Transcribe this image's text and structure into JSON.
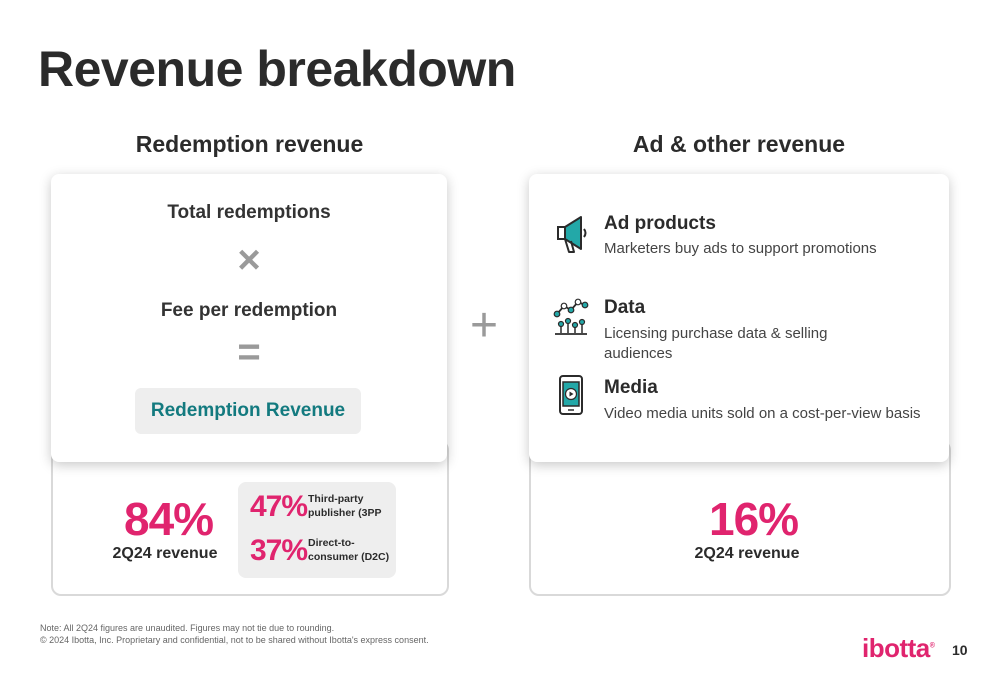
{
  "title": "Revenue breakdown",
  "redemption": {
    "heading": "Redemption revenue",
    "formula": {
      "line1": "Total redemptions",
      "times": "×",
      "line2": "Fee per redemption",
      "equals": "=",
      "result": "Redemption Revenue"
    },
    "share": {
      "pct": "84%",
      "label": "2Q24 revenue"
    },
    "split": [
      {
        "pct": "47%",
        "label": "Third-party publisher (3PP"
      },
      {
        "pct": "37%",
        "label": "Direct-to-consumer (D2C)"
      }
    ]
  },
  "plus": "+",
  "ad": {
    "heading": "Ad & other revenue",
    "items": [
      {
        "icon": "megaphone-icon",
        "title": "Ad products",
        "desc": "Marketers buy ads to support promotions"
      },
      {
        "icon": "data-chart-icon",
        "title": "Data",
        "desc": "Licensing purchase data & selling audiences"
      },
      {
        "icon": "video-phone-icon",
        "title": "Media",
        "desc": "Video media units sold on a cost-per-view basis"
      }
    ],
    "share": {
      "pct": "16%",
      "label": "2Q24 revenue"
    }
  },
  "footer": {
    "note1": "Note: All 2Q24 figures are unaudited. Figures may not tie due to rounding.",
    "note2": "© 2024 Ibotta, Inc. Proprietary and confidential, not to be shared without Ibotta's express consent.",
    "logo": "ibotta",
    "page": "10"
  },
  "colors": {
    "accent_pink": "#e0246e",
    "teal": "#137a7f",
    "gray_operator": "#9a9a9a"
  }
}
